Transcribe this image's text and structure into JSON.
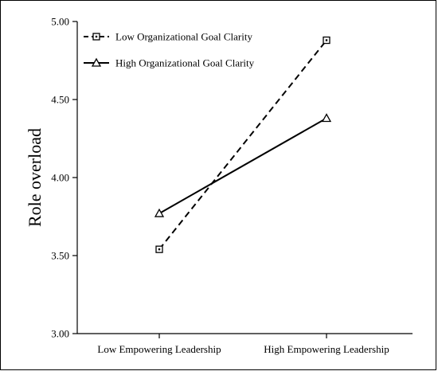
{
  "chart_data": {
    "type": "line",
    "title": "",
    "xlabel": "",
    "ylabel": "Role overload",
    "categories": [
      "Low Empowering Leadership",
      "High Empowering Leadership"
    ],
    "ylim": [
      3.0,
      5.0
    ],
    "yticks": [
      3.0,
      3.5,
      4.0,
      4.5,
      5.0
    ],
    "ytick_labels": [
      "3.00",
      "3.50",
      "4.00",
      "4.50",
      "5.00"
    ],
    "grid": false,
    "legend_position": "top-left",
    "series": [
      {
        "name": "Low Organizational Goal Clarity",
        "values": [
          3.54,
          4.88
        ],
        "line_style": "dashed",
        "marker": "square-dot",
        "color": "#000000"
      },
      {
        "name": "High Organizational Goal Clarity",
        "values": [
          3.77,
          4.38
        ],
        "line_style": "solid",
        "marker": "triangle",
        "color": "#000000"
      }
    ]
  }
}
